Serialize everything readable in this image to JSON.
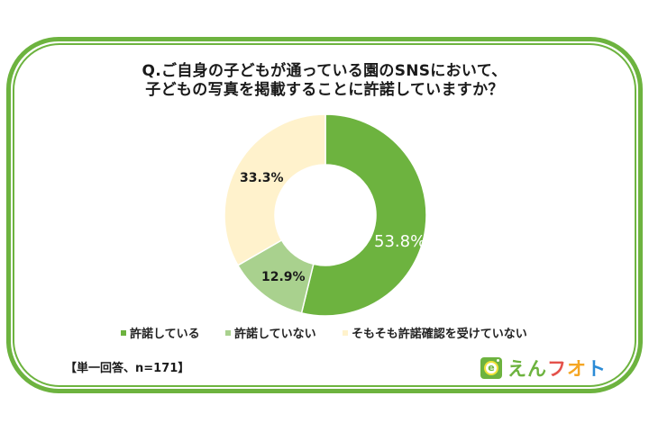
{
  "title": {
    "line1": "Q.ご自身の子どもが通っている園のSNSにおいて、",
    "line2": "子どもの写真を掲載することに許諾していますか？"
  },
  "chart_data": {
    "type": "pie",
    "subtype": "donut",
    "title": "Q.ご自身の子どもが通っている園のSNSにおいて、子どもの写真を掲載することに許諾していますか？",
    "categories": [
      "許諾している",
      "許諾していない",
      "そもそも許諾確認を受けていない"
    ],
    "values": [
      53.8,
      12.9,
      33.3
    ],
    "value_labels": [
      "53.8%",
      "12.9%",
      "33.3%"
    ],
    "colors": [
      "#6db33f",
      "#a9d18e",
      "#fff2cc"
    ],
    "legend_position": "bottom",
    "unit": "%"
  },
  "legend": [
    {
      "label": "許諾している",
      "color": "#6db33f"
    },
    {
      "label": "許諾していない",
      "color": "#a9d18e"
    },
    {
      "label": "そもそも許諾確認を受けていない",
      "color": "#fff2cc"
    }
  ],
  "note": "【単一回答、n=171】",
  "logo": {
    "icon_letter": "e",
    "text_parts": [
      "えん",
      "フ",
      "オ",
      "ト"
    ]
  }
}
